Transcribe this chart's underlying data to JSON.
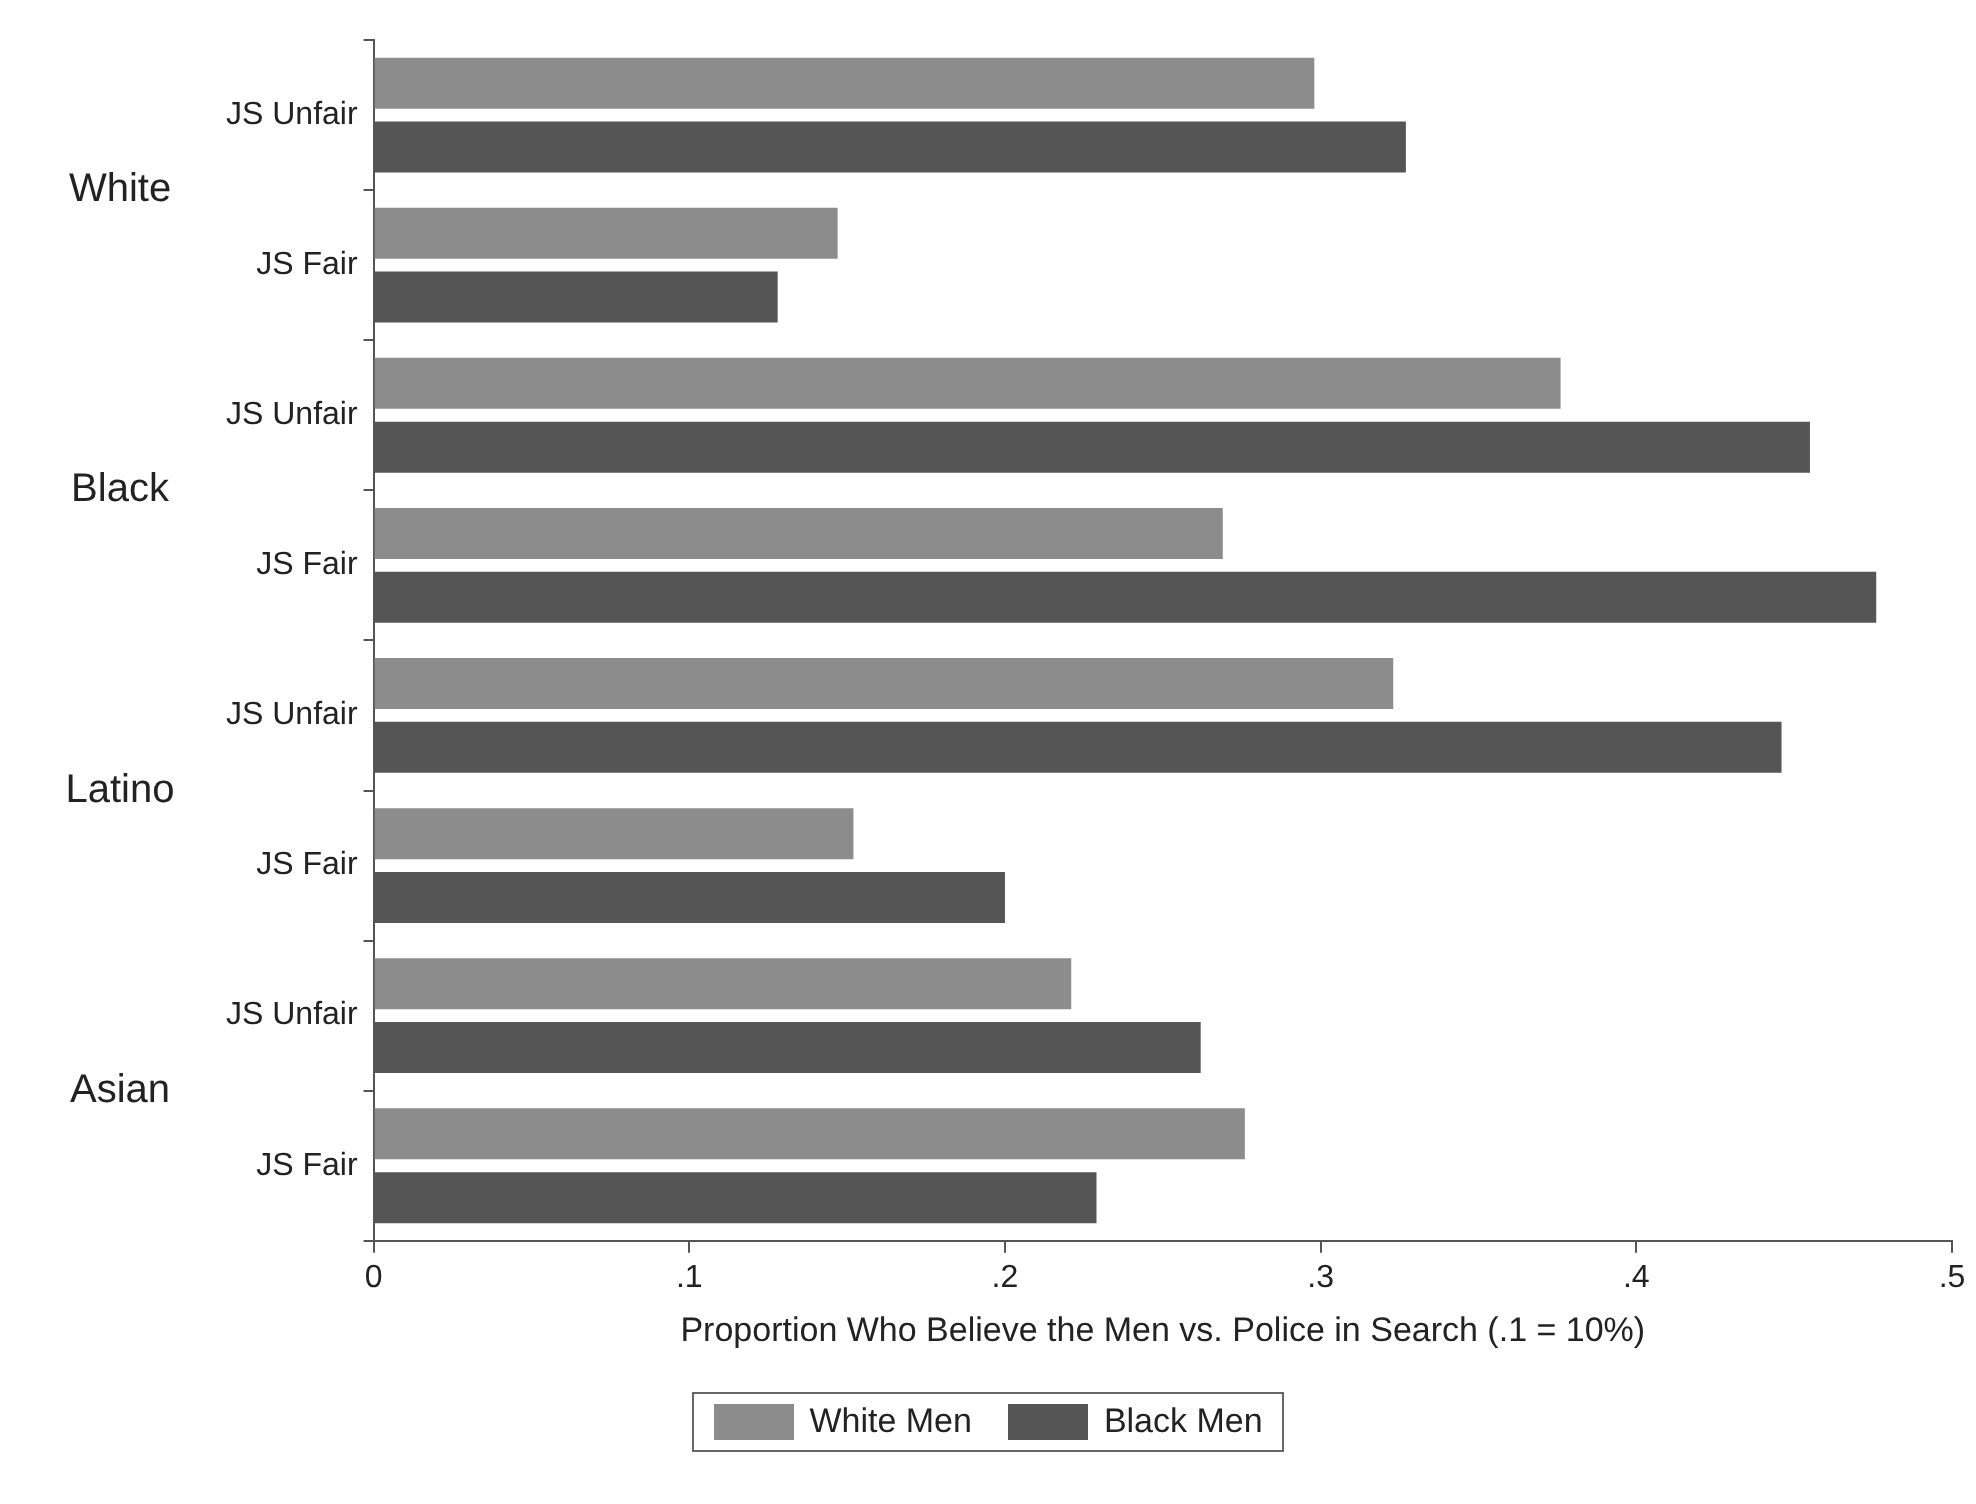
{
  "chart_data": {
    "type": "bar",
    "orientation": "horizontal",
    "categories": [
      "JS Unfair",
      "JS Fair",
      "JS Unfair",
      "JS Fair",
      "JS Unfair",
      "JS Fair",
      "JS Unfair",
      "JS Fair"
    ],
    "annotations": [
      "White",
      "Black",
      "Latino",
      "Asian"
    ],
    "series": [
      {
        "name": "White Men",
        "color": "#8c8c8c",
        "values": [
          0.298,
          0.147,
          0.376,
          0.269,
          0.323,
          0.152,
          0.221,
          0.276
        ]
      },
      {
        "name": "Black Men",
        "color": "#555555",
        "values": [
          0.327,
          0.128,
          0.455,
          0.476,
          0.446,
          0.2,
          0.262,
          0.229
        ]
      }
    ],
    "xlabel": "Proportion Who Believe the Men vs. Police in Search (.1 = 10%)",
    "xlim": [
      0,
      0.5
    ],
    "xticks": [
      {
        "value": 0,
        "label": "0"
      },
      {
        "value": 0.1,
        "label": ".1"
      },
      {
        "value": 0.2,
        "label": ".2"
      },
      {
        "value": 0.3,
        "label": ".3"
      },
      {
        "value": 0.4,
        "label": ".4"
      },
      {
        "value": 0.5,
        "label": ".5"
      }
    ],
    "grid": false,
    "legend": "bottom"
  }
}
